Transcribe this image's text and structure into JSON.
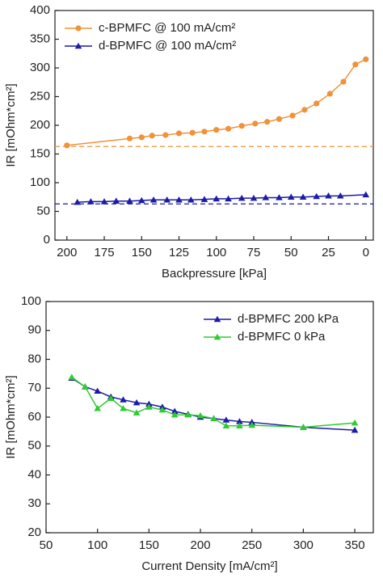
{
  "chart_data": [
    {
      "type": "line",
      "x_label": "Backpressure [kPa]",
      "y_label": "IR [mOhm*cm²]",
      "xlim": [
        208,
        -5
      ],
      "xticks": [
        200,
        175,
        150,
        125,
        100,
        75,
        50,
        25,
        0
      ],
      "ylim": [
        0,
        400
      ],
      "yticks": [
        0,
        50,
        100,
        150,
        200,
        250,
        300,
        350,
        400
      ],
      "legend": "upper left",
      "series": [
        {
          "name": "c-BPMFC @ 100 mA/cm²",
          "color": "#f0923a",
          "marker": "circle",
          "x": [
            200,
            158,
            150,
            143,
            134,
            125,
            116,
            108,
            100,
            92,
            83,
            74,
            66,
            58,
            49,
            41,
            33,
            24,
            15,
            7,
            0
          ],
          "values": [
            165,
            177,
            179,
            182,
            183,
            186,
            187,
            189,
            192,
            194,
            199,
            203,
            206,
            211,
            217,
            227,
            238,
            255,
            276,
            306,
            315
          ]
        },
        {
          "name": "d-BPMFC @ 100 mA/cm²",
          "color": "#1c1ca8",
          "marker": "triangle",
          "x": [
            193,
            184,
            175,
            167,
            158,
            150,
            142,
            133,
            125,
            117,
            108,
            100,
            92,
            83,
            75,
            67,
            58,
            50,
            42,
            33,
            25,
            17,
            0
          ],
          "values": [
            66,
            67,
            67,
            68,
            68,
            69,
            70,
            70,
            70,
            70,
            71,
            72,
            72,
            73,
            73,
            74,
            74,
            75,
            75,
            76,
            77,
            77,
            79
          ]
        }
      ],
      "reference_lines": [
        {
          "value": 163,
          "color": "#f0923a"
        },
        {
          "value": 63,
          "color": "#1c1ca8"
        }
      ]
    },
    {
      "type": "line",
      "x_label": "Current Density [mA/cm²]",
      "y_label": "IR [mOhm*cm²]",
      "xlim": [
        50,
        368
      ],
      "xticks": [
        50,
        100,
        150,
        200,
        250,
        300,
        350
      ],
      "ylim": [
        20,
        100
      ],
      "yticks": [
        20,
        30,
        40,
        50,
        60,
        70,
        80,
        90,
        100
      ],
      "legend": "upper right",
      "series": [
        {
          "name": "d-BPMFC 200 kPa",
          "color": "#1c1ca8",
          "marker": "triangle",
          "x": [
            75,
            88,
            100,
            113,
            125,
            138,
            150,
            163,
            175,
            188,
            200,
            213,
            225,
            238,
            250,
            300,
            350
          ],
          "values": [
            73.5,
            70.5,
            69,
            67,
            66,
            65,
            64.5,
            63.5,
            62,
            61,
            60,
            59.5,
            59,
            58.5,
            58.2,
            56.5,
            55.5
          ]
        },
        {
          "name": "d-BPMFC 0 kPa",
          "color": "#2ecc2e",
          "marker": "triangle",
          "x": [
            75,
            88,
            100,
            113,
            125,
            138,
            150,
            163,
            175,
            188,
            200,
            213,
            225,
            238,
            250,
            300,
            350
          ],
          "values": [
            73.8,
            70.5,
            63,
            66.5,
            63,
            61.5,
            63.5,
            62.5,
            60.8,
            60.8,
            60.5,
            59.5,
            57,
            57,
            57.2,
            56.5,
            58
          ]
        }
      ]
    }
  ]
}
